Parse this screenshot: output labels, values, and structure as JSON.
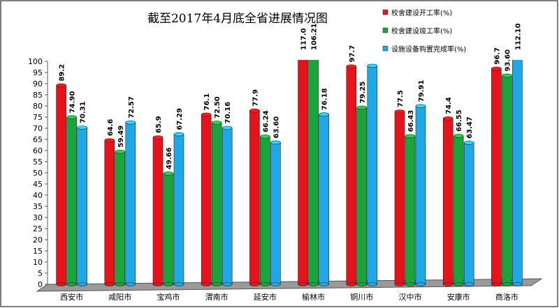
{
  "chart_data": {
    "type": "bar",
    "title": "截至2017年4月底全省进展情况图",
    "categories": [
      "西安市",
      "咸阳市",
      "宝鸡市",
      "渭南市",
      "延安市",
      "榆林市",
      "铜川市",
      "汉中市",
      "安康市",
      "商洛市"
    ],
    "series": [
      {
        "name": "校舍建设开工率(%)",
        "color": "#e8121b",
        "values": [
          89.2,
          64.6,
          65.9,
          76.1,
          77.9,
          117.0,
          97.7,
          77.5,
          74.4,
          96.7
        ],
        "value_labels": [
          "89.2",
          "64.6",
          "65.9",
          "76.1",
          "77.9",
          "117.0",
          "97.7",
          "77.5",
          "74.4",
          "96.7"
        ]
      },
      {
        "name": "校舍建设竣工率(%)",
        "color": "#1aa53c",
        "values": [
          74.9,
          59.49,
          49.66,
          72.5,
          66.24,
          106.21,
          79.25,
          66.43,
          66.55,
          93.6
        ],
        "value_labels": [
          "74.90",
          "59.49",
          "49.66",
          "72.50",
          "66.24",
          "106.21",
          "79.25",
          "66.43",
          "66.55",
          "93.60"
        ]
      },
      {
        "name": "设施设备购置完成率(%)",
        "color": "#1ea8e8",
        "values": [
          70.31,
          72.57,
          67.29,
          70.16,
          63.6,
          76.18,
          98,
          79.91,
          63.47,
          112.1
        ],
        "value_labels": [
          "70.31",
          "72.57",
          "67.29",
          "70.16",
          "63.60",
          "76.18",
          null,
          "79.91",
          "63.47",
          "112.10"
        ]
      }
    ],
    "ylim": [
      0,
      100
    ],
    "yticks": [
      0,
      5,
      10,
      15,
      20,
      25,
      30,
      35,
      40,
      45,
      50,
      55,
      60,
      65,
      70,
      75,
      80,
      85,
      90,
      95,
      100
    ]
  }
}
